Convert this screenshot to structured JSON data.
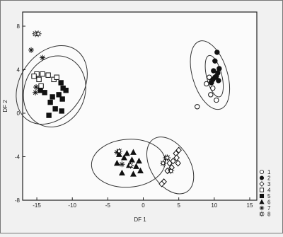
{
  "chart_data": {
    "type": "scatter",
    "xlabel": "DF 1",
    "ylabel": "DF 2",
    "xlim": [
      -17,
      16
    ],
    "ylim": [
      -8,
      9.3
    ],
    "xticks": [
      -15,
      -10,
      -5,
      0,
      5,
      10,
      15
    ],
    "yticks": [
      -8,
      -4,
      0,
      4,
      8
    ],
    "grid": false,
    "legend_position": "right",
    "legend": [
      "1",
      "2",
      "3",
      "4",
      "5",
      "6",
      "7",
      "8"
    ],
    "series": [
      {
        "name": "1",
        "marker": "circle-open",
        "points": [
          [
            9.3,
            3.3
          ],
          [
            9.6,
            2.9
          ],
          [
            8.9,
            2.7
          ],
          [
            9.5,
            1.7
          ],
          [
            10.3,
            1.2
          ],
          [
            7.6,
            0.6
          ],
          [
            9.8,
            2.3
          ]
        ]
      },
      {
        "name": "2",
        "marker": "circle-filled",
        "points": [
          [
            10.4,
            5.6
          ],
          [
            10.1,
            4.8
          ],
          [
            10.7,
            4.1
          ],
          [
            9.9,
            3.9
          ],
          [
            10.5,
            3.7
          ],
          [
            10.1,
            3.3
          ],
          [
            9.8,
            3.1
          ],
          [
            10.3,
            3.4
          ],
          [
            10.6,
            3.0
          ],
          [
            9.6,
            2.8
          ]
        ]
      },
      {
        "name": "3",
        "marker": "diamond-open",
        "points": [
          [
            5.0,
            -3.4
          ],
          [
            4.6,
            -3.7
          ],
          [
            4.7,
            -4.1
          ],
          [
            4.2,
            -4.4
          ],
          [
            3.7,
            -4.6
          ],
          [
            4.0,
            -5.0
          ],
          [
            3.4,
            -5.3
          ],
          [
            2.9,
            -6.3
          ],
          [
            2.6,
            -6.5
          ],
          [
            4.9,
            -4.6
          ]
        ]
      },
      {
        "name": "4",
        "marker": "square-open",
        "points": [
          [
            -15.0,
            3.6
          ],
          [
            -15.4,
            3.4
          ],
          [
            -14.2,
            3.6
          ],
          [
            -14.7,
            3.1
          ],
          [
            -13.4,
            3.5
          ],
          [
            -12.6,
            3.1
          ],
          [
            -12.2,
            3.3
          ],
          [
            -14.4,
            2.5
          ]
        ]
      },
      {
        "name": "5",
        "marker": "square-filled",
        "points": [
          [
            -11.6,
            2.8
          ],
          [
            -11.3,
            2.3
          ],
          [
            -10.9,
            2.1
          ],
          [
            -11.9,
            1.7
          ],
          [
            -12.8,
            1.5
          ],
          [
            -13.9,
            1.9
          ],
          [
            -14.5,
            2.1
          ],
          [
            -11.4,
            1.3
          ],
          [
            -13.1,
            1.0
          ],
          [
            -12.4,
            0.4
          ],
          [
            -11.5,
            0.2
          ],
          [
            -13.3,
            -0.2
          ]
        ]
      },
      {
        "name": "6",
        "marker": "triangle-filled",
        "points": [
          [
            -3.4,
            -3.8
          ],
          [
            -2.3,
            -3.7
          ],
          [
            -1.4,
            -3.6
          ],
          [
            -2.7,
            -4.1
          ],
          [
            -1.6,
            -4.3
          ],
          [
            -0.6,
            -4.4
          ],
          [
            -3.7,
            -4.6
          ],
          [
            -2.0,
            -4.8
          ],
          [
            -1.0,
            -4.9
          ],
          [
            -0.4,
            -5.3
          ],
          [
            -3.0,
            -5.5
          ],
          [
            -1.4,
            -5.6
          ]
        ]
      },
      {
        "name": "7",
        "marker": "asterisk",
        "points": [
          [
            -15.8,
            5.8
          ],
          [
            -14.2,
            5.1
          ],
          [
            -15.1,
            2.4
          ],
          [
            -15.2,
            1.9
          ],
          [
            -3.7,
            -3.6
          ],
          [
            -3.0,
            -4.7
          ]
        ]
      },
      {
        "name": "8",
        "marker": "sun-open",
        "points": [
          [
            -15.2,
            7.3
          ],
          [
            -14.8,
            7.3
          ],
          [
            -3.4,
            -3.5
          ],
          [
            -1.8,
            -4.8
          ],
          [
            3.2,
            -4.1
          ],
          [
            2.8,
            -4.6
          ],
          [
            3.9,
            -5.3
          ],
          [
            3.4,
            -4.1
          ]
        ]
      }
    ],
    "ellipses": [
      {
        "group": "upper-left",
        "cx": -12.9,
        "cy": 2.6,
        "rx": 6.0,
        "ry": 2.9,
        "angle_deg": -55
      },
      {
        "group": "upper-left",
        "cx": -12.5,
        "cy": 2.0,
        "rx": 5.1,
        "ry": 2.8,
        "angle_deg": -70
      },
      {
        "group": "lower-middle",
        "cx": -2.1,
        "cy": -4.6,
        "rx": 5.2,
        "ry": 2.2,
        "angle_deg": -4
      },
      {
        "group": "lower-right",
        "cx": 3.8,
        "cy": -4.8,
        "rx": 4.4,
        "ry": 1.8,
        "angle_deg": 58
      },
      {
        "group": "right",
        "cx": 9.4,
        "cy": 3.5,
        "rx": 5.0,
        "ry": 1.6,
        "angle_deg": 73
      },
      {
        "group": "right",
        "cx": 10.0,
        "cy": 3.4,
        "rx": 3.0,
        "ry": 0.7,
        "angle_deg": 76
      }
    ]
  }
}
